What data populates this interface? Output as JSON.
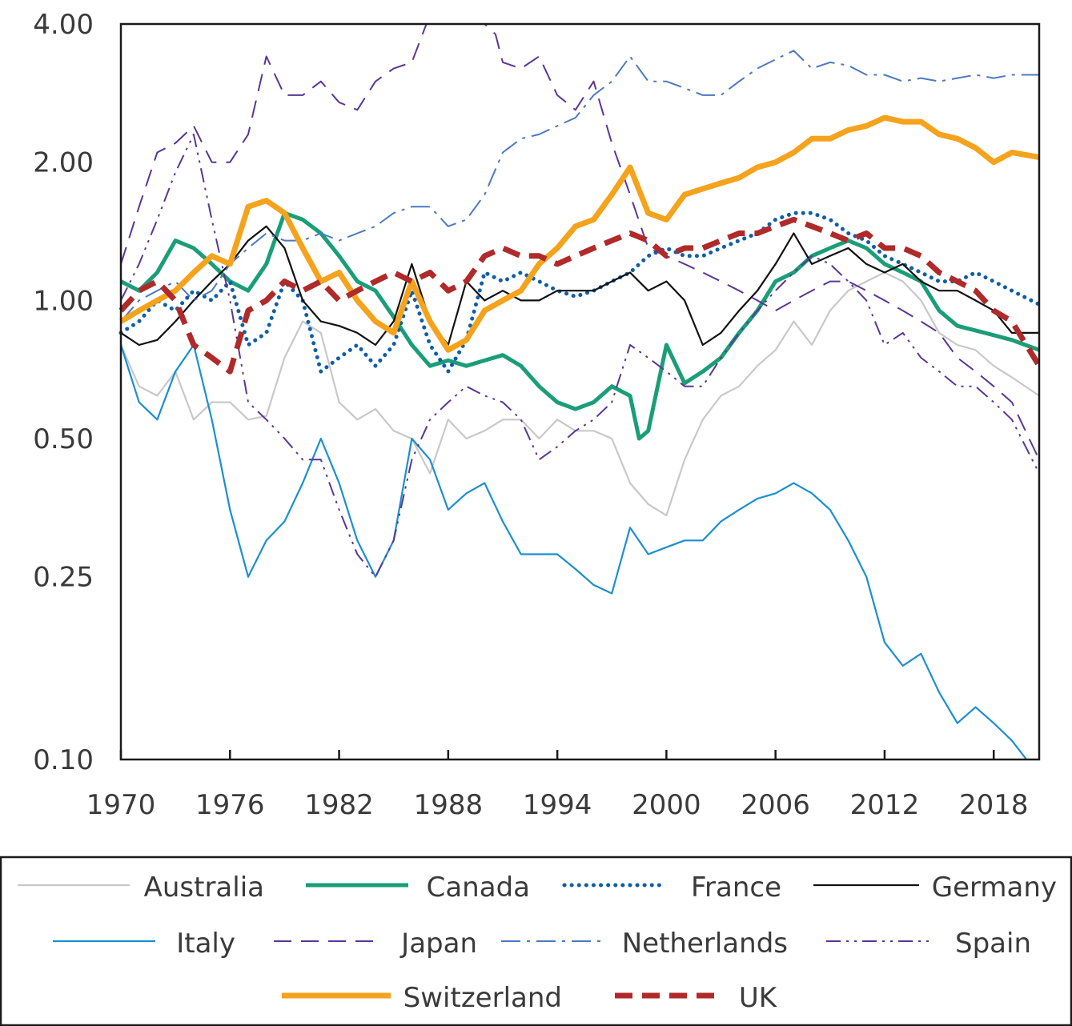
{
  "chart_data": {
    "type": "line",
    "y_scale": "log",
    "ylim": [
      0.1,
      4.0
    ],
    "xlim": [
      1970,
      2020.5
    ],
    "y_ticks": [
      "4.00",
      "2.00",
      "1.00",
      "0.50",
      "0.25",
      "0.10"
    ],
    "y_tick_values": [
      4.0,
      2.0,
      1.0,
      0.5,
      0.25,
      0.1
    ],
    "x_ticks": [
      "1970",
      "1976",
      "1982",
      "1988",
      "1994",
      "2000",
      "2006",
      "2012",
      "2018"
    ],
    "x_tick_values": [
      1970,
      1976,
      1982,
      1988,
      1994,
      2000,
      2006,
      2012,
      2018
    ],
    "legend_position": "bottom",
    "series": [
      {
        "name": "Australia",
        "color": "#c8c8c8",
        "dash": "solid",
        "x": [
          1970,
          1971,
          1972,
          1973,
          1974,
          1975,
          1976,
          1977,
          1978,
          1979,
          1980,
          1981,
          1982,
          1983,
          1984,
          1985,
          1986,
          1987,
          1988,
          1989,
          1990,
          1991,
          1992,
          1993,
          1994,
          1995,
          1996,
          1997,
          1998,
          1999,
          2000,
          2001,
          2002,
          2003,
          2004,
          2005,
          2006,
          2007,
          2008,
          2009,
          2010,
          2011,
          2012,
          2013,
          2014,
          2015,
          2016,
          2017,
          2018,
          2019,
          2020.5
        ],
        "y": [
          0.8,
          0.65,
          0.62,
          0.7,
          0.55,
          0.6,
          0.6,
          0.55,
          0.56,
          0.75,
          0.9,
          0.85,
          0.6,
          0.55,
          0.58,
          0.52,
          0.5,
          0.42,
          0.55,
          0.5,
          0.52,
          0.55,
          0.55,
          0.5,
          0.55,
          0.52,
          0.52,
          0.5,
          0.4,
          0.36,
          0.34,
          0.45,
          0.55,
          0.62,
          0.65,
          0.72,
          0.78,
          0.9,
          0.8,
          0.95,
          1.05,
          1.1,
          1.15,
          1.1,
          1.0,
          0.85,
          0.8,
          0.78,
          0.72,
          0.68,
          0.62
        ]
      },
      {
        "name": "Canada",
        "color": "#1a9e78",
        "dash": "solid",
        "x": [
          1970,
          1971,
          1972,
          1973,
          1974,
          1975,
          1976,
          1977,
          1978,
          1979,
          1980,
          1981,
          1982,
          1983,
          1984,
          1985,
          1986,
          1987,
          1988,
          1989,
          1990,
          1991,
          1992,
          1993,
          1994,
          1995,
          1996,
          1997,
          1998,
          1998.5,
          1999,
          2000,
          2001,
          2002,
          2003,
          2004,
          2005,
          2006,
          2007,
          2008,
          2009,
          2010,
          2011,
          2012,
          2013,
          2014,
          2015,
          2016,
          2017,
          2018,
          2019,
          2020.5
        ],
        "y": [
          1.1,
          1.05,
          1.15,
          1.35,
          1.3,
          1.2,
          1.1,
          1.05,
          1.2,
          1.55,
          1.5,
          1.4,
          1.25,
          1.1,
          1.05,
          0.92,
          0.8,
          0.72,
          0.74,
          0.72,
          0.74,
          0.76,
          0.72,
          0.65,
          0.6,
          0.58,
          0.6,
          0.65,
          0.62,
          0.5,
          0.52,
          0.8,
          0.66,
          0.7,
          0.75,
          0.85,
          0.95,
          1.1,
          1.15,
          1.25,
          1.3,
          1.35,
          1.3,
          1.2,
          1.15,
          1.1,
          0.95,
          0.88,
          0.86,
          0.84,
          0.82,
          0.78
        ]
      },
      {
        "name": "France",
        "color": "#0f5ea8",
        "dash": "dotted",
        "x": [
          1970,
          1971,
          1972,
          1973,
          1974,
          1975,
          1976,
          1977,
          1978,
          1979,
          1980,
          1981,
          1982,
          1983,
          1984,
          1985,
          1986,
          1987,
          1988,
          1989,
          1990,
          1991,
          1992,
          1993,
          1994,
          1995,
          1996,
          1997,
          1998,
          1999,
          2000,
          2001,
          2002,
          2003,
          2004,
          2005,
          2006,
          2007,
          2008,
          2009,
          2010,
          2011,
          2012,
          2013,
          2014,
          2015,
          2016,
          2017,
          2018,
          2019,
          2020.5
        ],
        "y": [
          0.85,
          0.9,
          1.0,
          0.95,
          1.05,
          1.0,
          1.1,
          0.8,
          0.85,
          1.1,
          1.0,
          0.7,
          0.75,
          0.8,
          0.72,
          0.8,
          1.05,
          0.8,
          0.7,
          0.82,
          1.15,
          1.1,
          1.15,
          1.1,
          1.05,
          1.02,
          1.05,
          1.1,
          1.15,
          1.25,
          1.3,
          1.25,
          1.25,
          1.3,
          1.35,
          1.4,
          1.5,
          1.55,
          1.55,
          1.5,
          1.4,
          1.35,
          1.25,
          1.2,
          1.15,
          1.1,
          1.1,
          1.15,
          1.1,
          1.05,
          0.98
        ]
      },
      {
        "name": "Germany",
        "color": "#111111",
        "dash": "solid",
        "x": [
          1970,
          1971,
          1972,
          1973,
          1974,
          1975,
          1976,
          1977,
          1978,
          1979,
          1980,
          1981,
          1982,
          1983,
          1984,
          1985,
          1986,
          1987,
          1988,
          1989,
          1990,
          1991,
          1992,
          1993,
          1994,
          1995,
          1996,
          1997,
          1998,
          1999,
          2000,
          2001,
          2002,
          2003,
          2004,
          2005,
          2006,
          2007,
          2008,
          2009,
          2010,
          2011,
          2012,
          2013,
          2014,
          2015,
          2016,
          2017,
          2018,
          2019,
          2020.5
        ],
        "y": [
          0.85,
          0.8,
          0.82,
          0.9,
          1.0,
          1.1,
          1.2,
          1.35,
          1.45,
          1.3,
          1.0,
          0.9,
          0.88,
          0.85,
          0.8,
          0.9,
          1.2,
          0.9,
          0.8,
          1.1,
          1.0,
          1.05,
          1.0,
          1.0,
          1.05,
          1.05,
          1.05,
          1.1,
          1.15,
          1.05,
          1.1,
          1.0,
          0.8,
          0.85,
          0.95,
          1.05,
          1.2,
          1.4,
          1.2,
          1.25,
          1.3,
          1.2,
          1.15,
          1.2,
          1.1,
          1.05,
          1.05,
          1.0,
          0.95,
          0.85,
          0.85
        ]
      },
      {
        "name": "Italy",
        "color": "#1b8fd0",
        "dash": "solid",
        "x": [
          1970,
          1971,
          1972,
          1973,
          1974,
          1975,
          1976,
          1977,
          1978,
          1979,
          1980,
          1981,
          1982,
          1983,
          1984,
          1985,
          1986,
          1987,
          1988,
          1989,
          1990,
          1991,
          1992,
          1993,
          1994,
          1995,
          1996,
          1997,
          1998,
          1999,
          2000,
          2001,
          2002,
          2003,
          2004,
          2005,
          2006,
          2007,
          2008,
          2009,
          2010,
          2011,
          2012,
          2013,
          2014,
          2015,
          2016,
          2017,
          2018,
          2019,
          2019.8
        ],
        "y": [
          0.8,
          0.6,
          0.55,
          0.7,
          0.8,
          0.55,
          0.35,
          0.25,
          0.3,
          0.33,
          0.4,
          0.5,
          0.4,
          0.3,
          0.25,
          0.3,
          0.5,
          0.45,
          0.35,
          0.38,
          0.4,
          0.33,
          0.28,
          0.28,
          0.28,
          0.26,
          0.24,
          0.23,
          0.32,
          0.28,
          0.29,
          0.3,
          0.3,
          0.33,
          0.35,
          0.37,
          0.38,
          0.4,
          0.38,
          0.35,
          0.3,
          0.25,
          0.18,
          0.16,
          0.17,
          0.14,
          0.12,
          0.13,
          0.12,
          0.11,
          0.1
        ]
      },
      {
        "name": "Japan",
        "color": "#5a3696",
        "dash": "dashed",
        "x": [
          1970,
          1971,
          1972,
          1973,
          1974,
          1975,
          1976,
          1977,
          1978,
          1979,
          1980,
          1981,
          1982,
          1983,
          1984,
          1985,
          1986,
          1986.8,
          1990,
          1990.6,
          1991,
          1992,
          1993,
          1994,
          1995,
          1996,
          1997,
          1998,
          1999,
          2000,
          2001,
          2002,
          2003,
          2004,
          2005,
          2006,
          2007,
          2008,
          2009,
          2010,
          2011,
          2012,
          2013,
          2014,
          2015,
          2016,
          2017,
          2018,
          2019,
          2020.5
        ],
        "y": [
          1.2,
          1.6,
          2.1,
          2.2,
          2.4,
          2.0,
          2.0,
          2.3,
          3.4,
          2.8,
          2.8,
          3.0,
          2.7,
          2.6,
          3.0,
          3.2,
          3.3,
          4.0,
          4.0,
          3.8,
          3.3,
          3.2,
          3.4,
          2.8,
          2.6,
          3.0,
          2.2,
          1.7,
          1.3,
          1.25,
          1.2,
          1.15,
          1.1,
          1.05,
          1.0,
          0.95,
          1.0,
          1.05,
          1.1,
          1.1,
          1.05,
          1.0,
          0.95,
          0.9,
          0.85,
          0.75,
          0.7,
          0.65,
          0.6,
          0.45
        ]
      },
      {
        "name": "Netherlands",
        "color": "#4c79c0",
        "dash": "dashdot",
        "x": [
          1970,
          1971,
          1972,
          1973,
          1974,
          1975,
          1976,
          1977,
          1978,
          1979,
          1980,
          1981,
          1982,
          1983,
          1984,
          1985,
          1986,
          1987,
          1988,
          1989,
          1990,
          1991,
          1992,
          1993,
          1994,
          1995,
          1996,
          1997,
          1998,
          1999,
          2000,
          2001,
          2002,
          2003,
          2004,
          2005,
          2006,
          2007,
          2008,
          2009,
          2010,
          2011,
          2012,
          2013,
          2014,
          2015,
          2016,
          2017,
          2018,
          2019,
          2020.5
        ],
        "y": [
          0.9,
          1.0,
          1.05,
          1.1,
          1.0,
          1.05,
          1.2,
          1.3,
          1.4,
          1.35,
          1.35,
          1.4,
          1.35,
          1.4,
          1.45,
          1.55,
          1.6,
          1.6,
          1.45,
          1.5,
          1.7,
          2.1,
          2.25,
          2.3,
          2.4,
          2.5,
          2.8,
          3.0,
          3.4,
          3.0,
          3.0,
          2.9,
          2.8,
          2.8,
          3.0,
          3.2,
          3.35,
          3.5,
          3.2,
          3.3,
          3.25,
          3.1,
          3.1,
          3.0,
          3.05,
          3.0,
          3.05,
          3.1,
          3.05,
          3.1,
          3.1
        ]
      },
      {
        "name": "Spain",
        "color": "#5a3696",
        "dash": "dashdotdot",
        "x": [
          1970,
          1971,
          1972,
          1973,
          1974,
          1975,
          1976,
          1977,
          1978,
          1979,
          1980,
          1981,
          1982,
          1983,
          1984,
          1985,
          1986,
          1987,
          1988,
          1989,
          1990,
          1991,
          1992,
          1993,
          1994,
          1995,
          1996,
          1997,
          1998,
          1999,
          2000,
          2001,
          2002,
          2003,
          2004,
          2005,
          2006,
          2007,
          2008,
          2009,
          2010,
          2011,
          2012,
          2013,
          2014,
          2015,
          2016,
          2017,
          2018,
          2019,
          2020.5
        ],
        "y": [
          1.0,
          1.2,
          1.5,
          1.9,
          2.3,
          1.5,
          1.0,
          0.6,
          0.55,
          0.5,
          0.45,
          0.45,
          0.35,
          0.28,
          0.25,
          0.3,
          0.45,
          0.55,
          0.6,
          0.65,
          0.62,
          0.6,
          0.55,
          0.45,
          0.48,
          0.52,
          0.55,
          0.6,
          0.8,
          0.75,
          0.7,
          0.65,
          0.65,
          0.75,
          0.85,
          0.95,
          1.05,
          1.15,
          1.25,
          1.2,
          1.1,
          1.0,
          0.8,
          0.85,
          0.75,
          0.7,
          0.65,
          0.65,
          0.6,
          0.55,
          0.42
        ]
      },
      {
        "name": "Switzerland",
        "color": "#f5a31c",
        "dash": "solid",
        "x": [
          1970,
          1971,
          1972,
          1973,
          1974,
          1975,
          1976,
          1977,
          1978,
          1979,
          1980,
          1981,
          1982,
          1983,
          1984,
          1985,
          1986,
          1987,
          1988,
          1989,
          1990,
          1991,
          1992,
          1993,
          1994,
          1995,
          1996,
          1997,
          1998,
          1999,
          2000,
          2001,
          2002,
          2003,
          2004,
          2005,
          2006,
          2007,
          2008,
          2009,
          2010,
          2011,
          2012,
          2013,
          2014,
          2015,
          2016,
          2017,
          2018,
          2019,
          2020.5
        ],
        "y": [
          0.9,
          0.95,
          1.0,
          1.05,
          1.15,
          1.25,
          1.2,
          1.6,
          1.65,
          1.55,
          1.3,
          1.1,
          1.15,
          1.0,
          0.9,
          0.85,
          1.1,
          0.9,
          0.78,
          0.82,
          0.95,
          1.0,
          1.05,
          1.2,
          1.3,
          1.45,
          1.5,
          1.7,
          1.95,
          1.55,
          1.5,
          1.7,
          1.75,
          1.8,
          1.85,
          1.95,
          2.0,
          2.1,
          2.25,
          2.25,
          2.35,
          2.4,
          2.5,
          2.45,
          2.45,
          2.3,
          2.25,
          2.15,
          2.0,
          2.1,
          2.05
        ]
      },
      {
        "name": "UK",
        "color": "#b02a2a",
        "dash": "dashed",
        "x": [
          1970,
          1971,
          1972,
          1973,
          1974,
          1975,
          1976,
          1977,
          1978,
          1979,
          1980,
          1981,
          1982,
          1983,
          1984,
          1985,
          1986,
          1987,
          1988,
          1989,
          1990,
          1991,
          1992,
          1993,
          1994,
          1995,
          1996,
          1997,
          1998,
          1999,
          2000,
          2001,
          2002,
          2003,
          2004,
          2005,
          2006,
          2007,
          2008,
          2009,
          2010,
          2011,
          2012,
          2013,
          2014,
          2015,
          2016,
          2017,
          2018,
          2019,
          2020.5
        ],
        "y": [
          0.95,
          1.05,
          1.1,
          1.0,
          0.8,
          0.75,
          0.7,
          0.95,
          1.0,
          1.1,
          1.05,
          1.1,
          1.0,
          1.05,
          1.1,
          1.15,
          1.1,
          1.15,
          1.05,
          1.1,
          1.25,
          1.3,
          1.25,
          1.25,
          1.2,
          1.25,
          1.3,
          1.35,
          1.4,
          1.35,
          1.25,
          1.3,
          1.3,
          1.35,
          1.4,
          1.4,
          1.45,
          1.5,
          1.45,
          1.4,
          1.35,
          1.4,
          1.3,
          1.3,
          1.25,
          1.15,
          1.1,
          1.05,
          0.95,
          0.9,
          0.72
        ]
      }
    ]
  }
}
